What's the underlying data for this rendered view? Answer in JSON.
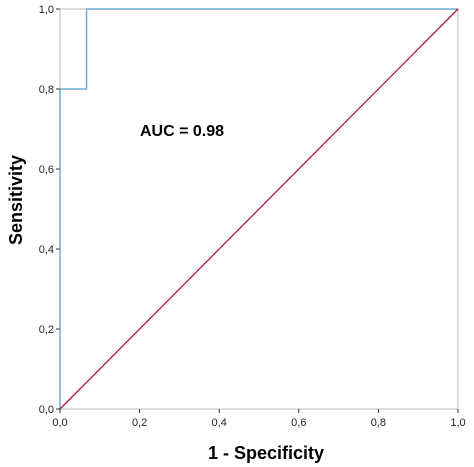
{
  "chart_data": {
    "type": "line",
    "xlabel": "1 - Specificity",
    "ylabel": "Sensitivity",
    "xlim": [
      0,
      1
    ],
    "ylim": [
      0,
      1
    ],
    "x_ticks": [
      "0,0",
      "0,2",
      "0,4",
      "0,6",
      "0,8",
      "1,0"
    ],
    "y_ticks": [
      "0,0",
      "0,2",
      "0,4",
      "0,6",
      "0,8",
      "1,0"
    ],
    "annotation": "AUC = 0.98",
    "grid": false,
    "series": [
      {
        "color": "#6baed6",
        "points": [
          [
            0,
            0
          ],
          [
            0,
            0.8
          ],
          [
            0.0667,
            0.8
          ],
          [
            0.0667,
            1.0
          ],
          [
            1.0,
            1.0
          ]
        ]
      },
      {
        "color": "#b0174a",
        "points": [
          [
            0,
            0
          ],
          [
            1.0,
            1.0
          ]
        ]
      }
    ]
  }
}
